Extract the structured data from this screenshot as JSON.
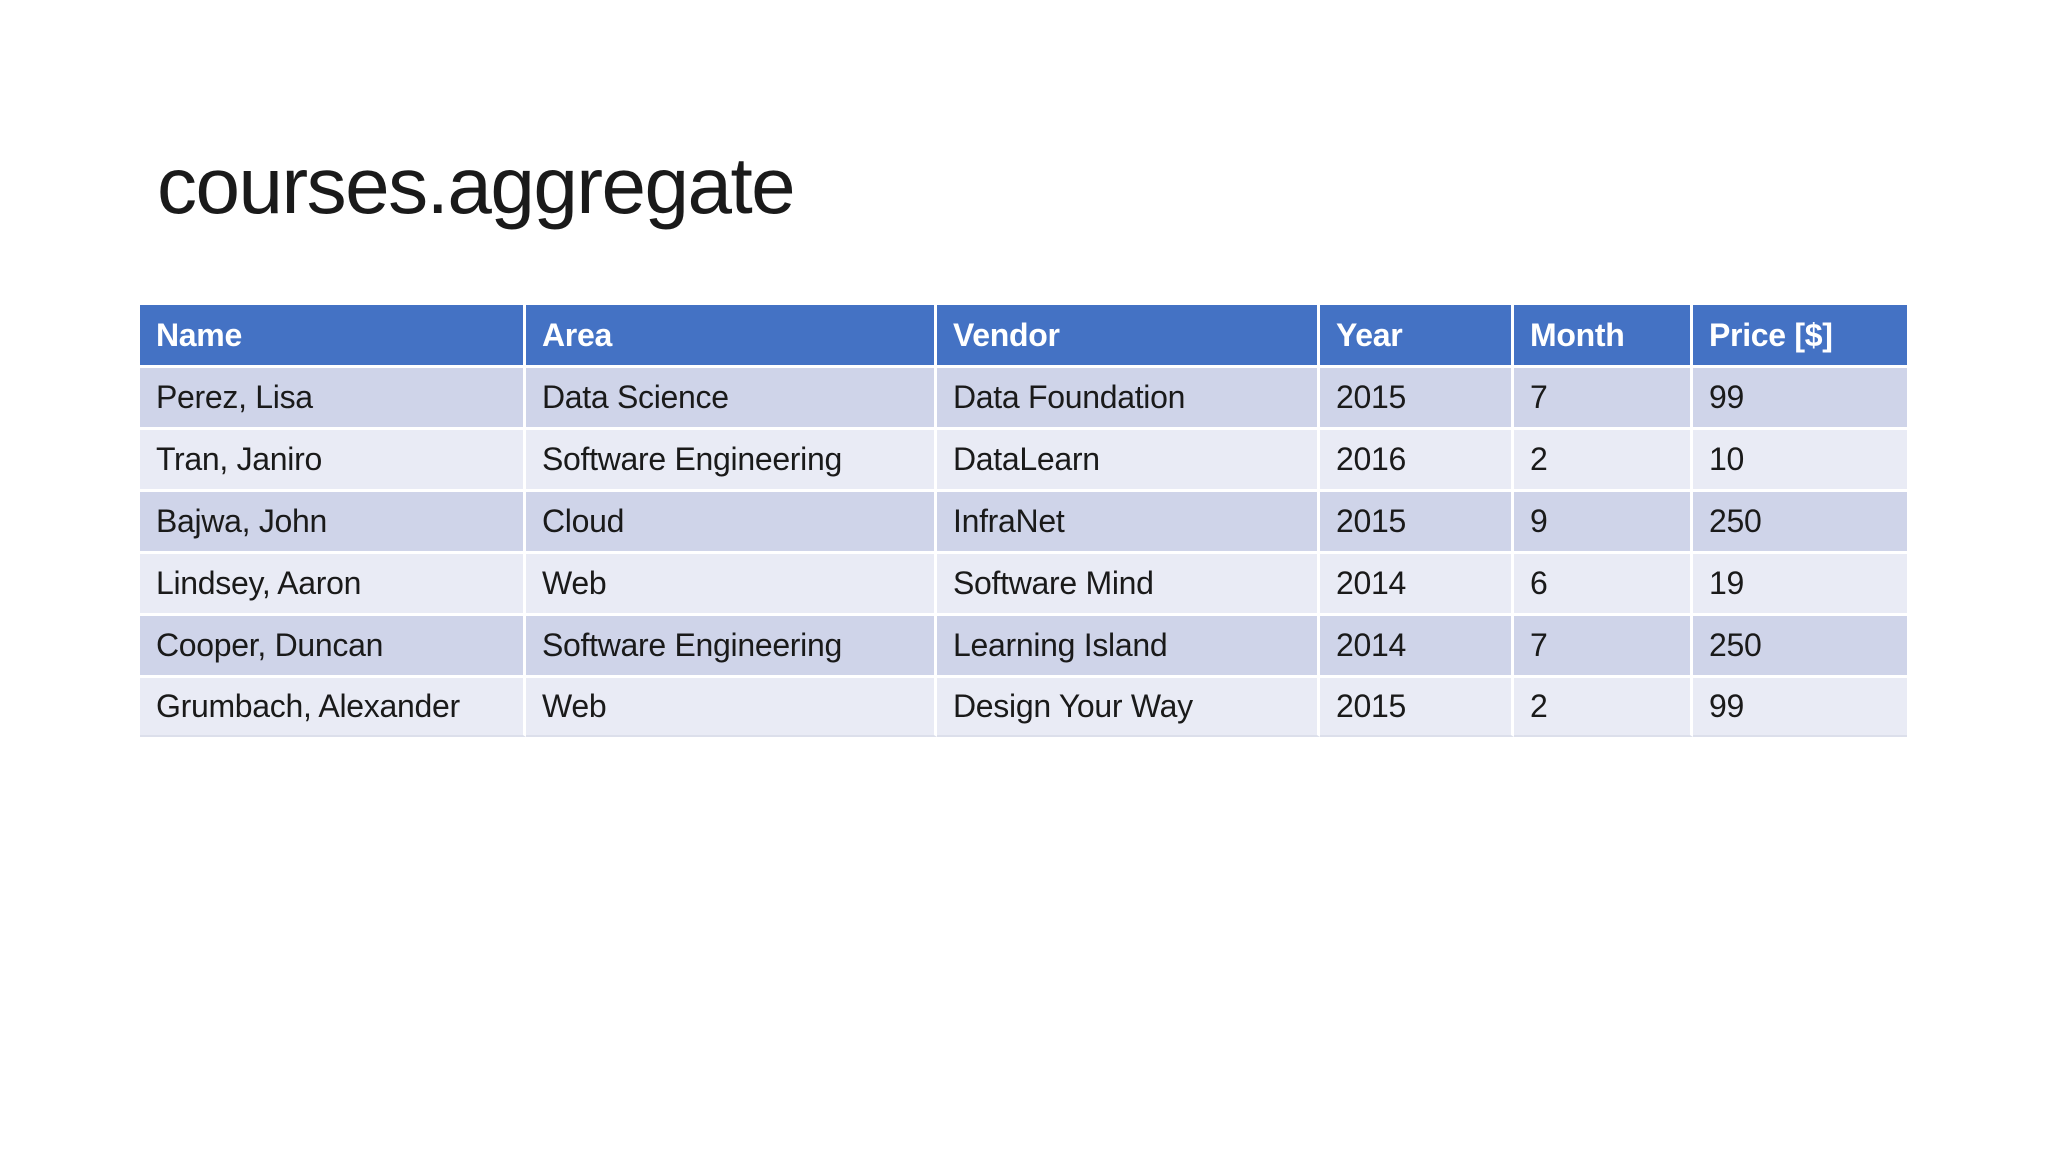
{
  "slide": {
    "title": "courses.aggregate"
  },
  "table": {
    "columns": [
      "Name",
      "Area",
      "Vendor",
      "Year",
      "Month",
      "Price [$]"
    ],
    "rows": [
      [
        "Perez, Lisa",
        "Data Science",
        "Data Foundation",
        "2015",
        "7",
        "99"
      ],
      [
        "Tran, Janiro",
        "Software Engineering",
        "DataLearn",
        "2016",
        "2",
        "10"
      ],
      [
        "Bajwa, John",
        "Cloud",
        "InfraNet",
        "2015",
        "9",
        "250"
      ],
      [
        "Lindsey, Aaron",
        "Web",
        "Software Mind",
        "2014",
        "6",
        "19"
      ],
      [
        "Cooper, Duncan",
        "Software Engineering",
        "Learning Island",
        "2014",
        "7",
        "250"
      ],
      [
        "Grumbach, Alexander",
        "Web",
        "Design Your Way",
        "2015",
        "2",
        "99"
      ]
    ]
  },
  "colors": {
    "background": "#FFFFFF",
    "title_text": "#1A1A1A",
    "header_bg": "#4472C4",
    "header_text": "#FFFFFF",
    "row_band_dark": "#CFD4E9",
    "row_band_light": "#E9EBF5",
    "body_text": "#1A1A1A"
  }
}
